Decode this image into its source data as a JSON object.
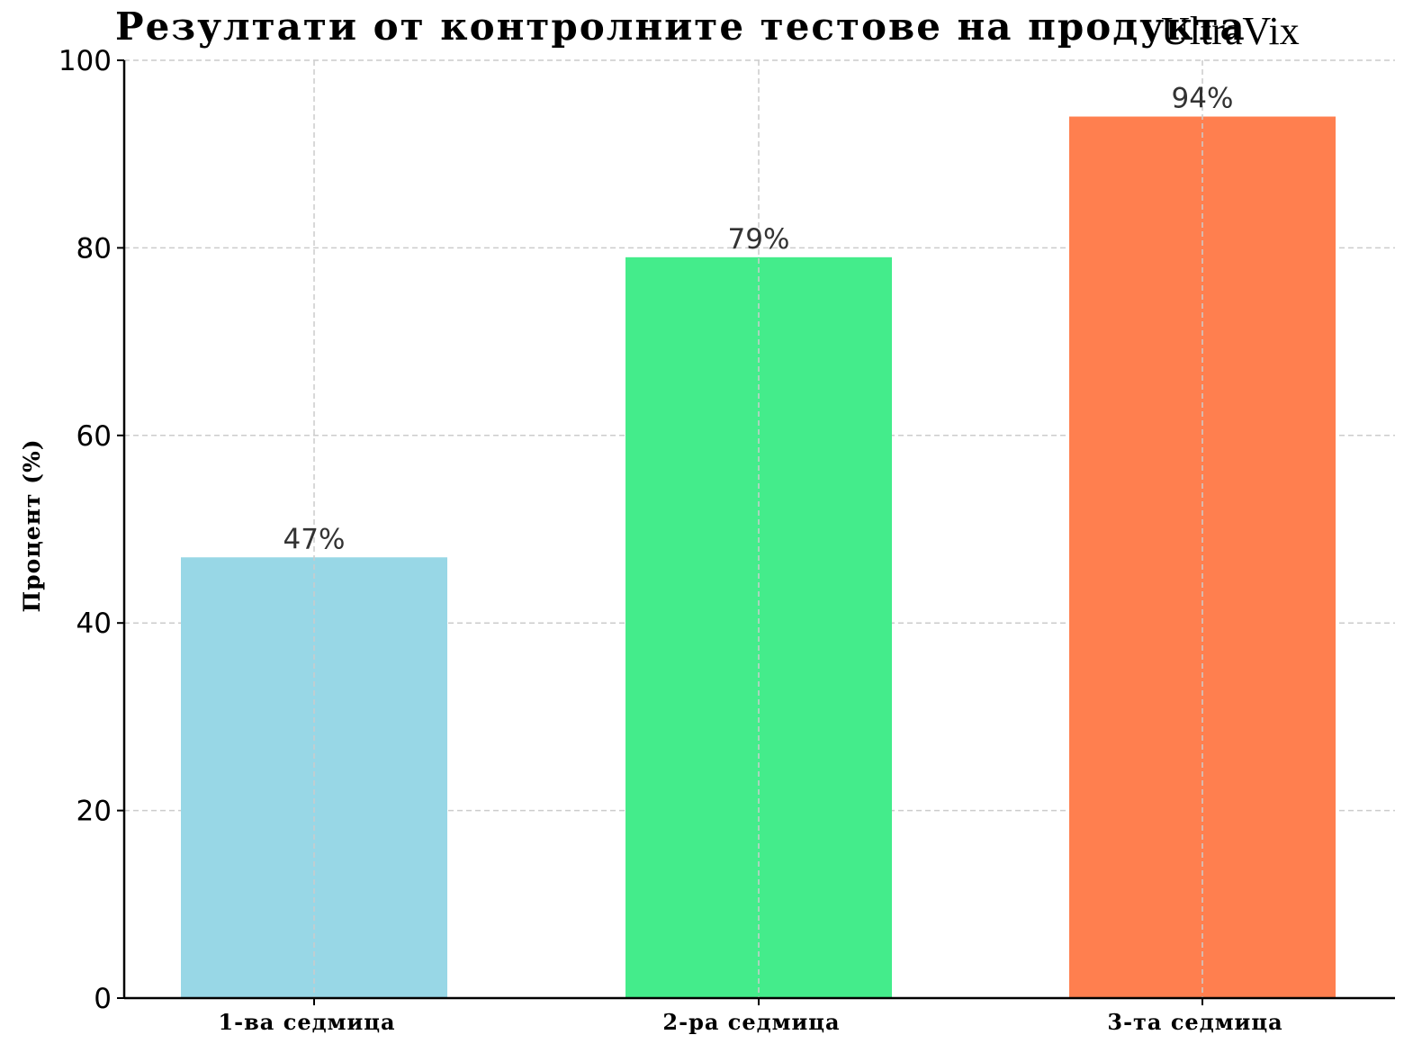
{
  "chart_data": {
    "type": "bar",
    "title": "Резултати от контролните тестове на продукта",
    "title_brand": "UltraVix",
    "xlabel": "",
    "ylabel": "Процент (%)",
    "categories": [
      "1-ва седмица",
      "2-ра седмица",
      "3-та седмица"
    ],
    "values": [
      47,
      79,
      94
    ],
    "data_labels": [
      "47%",
      "79%",
      "94%"
    ],
    "colors": [
      "#98d7e6",
      "#44ec8b",
      "#ff7f4f"
    ],
    "ylim": [
      0,
      100
    ],
    "yticks": [
      0,
      20,
      40,
      60,
      80,
      100
    ],
    "ytick_labels": [
      "0",
      "20",
      "40",
      "60",
      "80",
      "100"
    ],
    "grid": true,
    "grid_color": "#cccccc",
    "data_label_color": "#333333"
  }
}
